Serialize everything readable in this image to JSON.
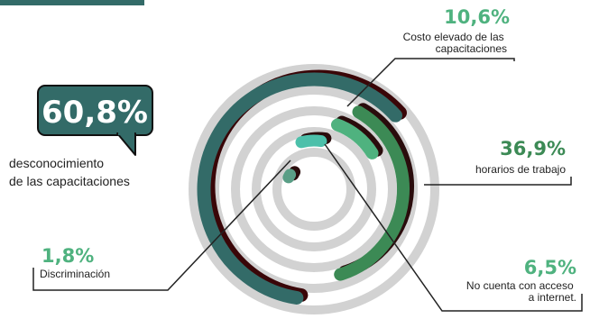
{
  "chart_data": {
    "type": "radial-bar",
    "series": [
      {
        "label": "desconocimiento\nde las capacitaciones",
        "display": "60,8%",
        "value": 60.8,
        "color": "#336b68",
        "shadow": "#3a0608"
      },
      {
        "label": "Costo elevado de las\ncapacitaciones",
        "display": "10,6%",
        "value": 10.6,
        "color": "#4fb27f",
        "shadow": "#2a0c0c"
      },
      {
        "label": "horarios de trabajo",
        "display": "36,9%",
        "value": 36.9,
        "color": "#3c8a55",
        "shadow": "#2a0c0c"
      },
      {
        "label": "No cuenta con acceso\na internet.",
        "display": "6,5%",
        "value": 6.5,
        "color": "#4cc0aa",
        "shadow": "#2a0c0c"
      },
      {
        "label": "Discriminación",
        "display": "1,8%",
        "value": 1.8,
        "color": "#5a9e86",
        "shadow": "#2a0c0c"
      }
    ],
    "colors": {
      "bubble": "#336b68",
      "pct_green": "#4fb27f",
      "pct_dark_green": "#3c8a55",
      "rings": "#d2d2d2",
      "ink": "#222222"
    }
  }
}
